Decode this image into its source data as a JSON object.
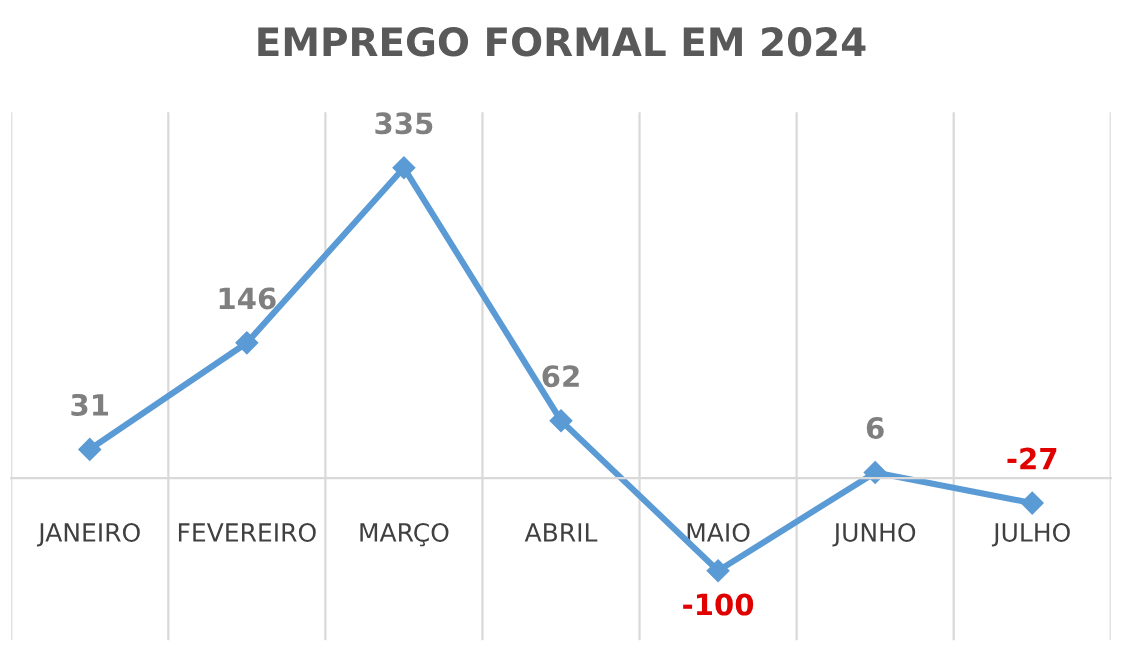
{
  "chart_data": {
    "type": "line",
    "title": "EMPREGO FORMAL EM 2024",
    "categories": [
      "JANEIRO",
      "FEVEREIRO",
      "MARÇO",
      "ABRIL",
      "MAIO",
      "JUNHO",
      "JULHO"
    ],
    "series": [
      {
        "color": "#5b9bd5",
        "values": [
          31,
          146,
          335,
          62,
          -100,
          6,
          -27
        ]
      }
    ],
    "data_labels": true,
    "marker": "diamond",
    "grid": "x",
    "legend": false
  }
}
